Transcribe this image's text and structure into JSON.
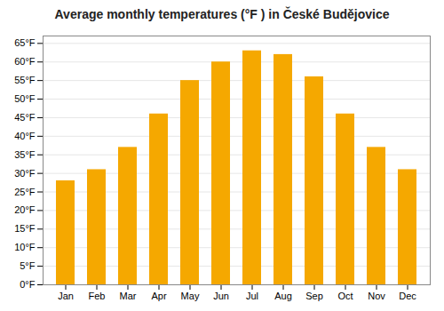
{
  "chart_data": {
    "type": "bar",
    "title": "Average monthly temperatures (°F ) in České Budějovice",
    "categories": [
      "Jan",
      "Feb",
      "Mar",
      "Apr",
      "May",
      "Jun",
      "Jul",
      "Aug",
      "Sep",
      "Oct",
      "Nov",
      "Dec"
    ],
    "values": [
      28,
      31,
      37,
      46,
      55,
      60,
      63,
      62,
      56,
      46,
      37,
      31
    ],
    "color": "#F5A800",
    "ylim": [
      0,
      67
    ],
    "yticks": [
      {
        "value": 0,
        "label": "0°F"
      },
      {
        "value": 5,
        "label": "5°F"
      },
      {
        "value": 10,
        "label": "10°F"
      },
      {
        "value": 15,
        "label": "15°F"
      },
      {
        "value": 20,
        "label": "20°F"
      },
      {
        "value": 25,
        "label": "25°F"
      },
      {
        "value": 30,
        "label": "30°F"
      },
      {
        "value": 35,
        "label": "35°F"
      },
      {
        "value": 40,
        "label": "40°F"
      },
      {
        "value": 45,
        "label": "45°F"
      },
      {
        "value": 50,
        "label": "50°F"
      },
      {
        "value": 55,
        "label": "55°F"
      },
      {
        "value": 60,
        "label": "60°F"
      },
      {
        "value": 65,
        "label": "65°F"
      }
    ],
    "grid": true
  }
}
